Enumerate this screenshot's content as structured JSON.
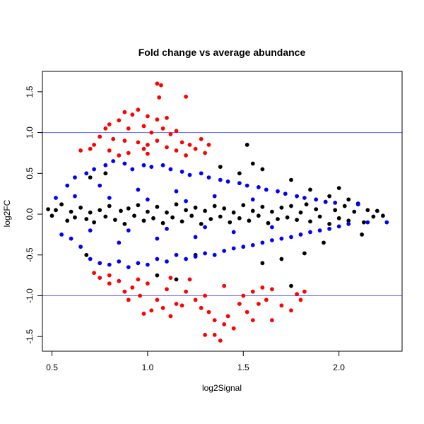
{
  "chart_data": {
    "type": "scatter",
    "title": "Fold change vs average abundance",
    "xlabel": "log2Signal",
    "ylabel": "log2FC",
    "xlim": [
      0.45,
      2.33
    ],
    "ylim": [
      -1.68,
      1.75
    ],
    "xticks": [
      0.5,
      1.0,
      1.5,
      2.0
    ],
    "xtick_labels": [
      "0.5",
      "1.0",
      "1.5",
      "2.0"
    ],
    "yticks": [
      -1.5,
      -1.0,
      -0.5,
      0.0,
      0.5,
      1.0,
      1.5
    ],
    "ytick_labels": [
      "-1.5",
      "-1.0",
      "-0.5",
      "0.0",
      "0.5",
      "1.0",
      "1.5"
    ],
    "reference_lines": [
      {
        "y": 1.0,
        "color": "#6666ff"
      },
      {
        "y": -1.0,
        "color": "#6666ff"
      }
    ],
    "grid": false,
    "series": [
      {
        "color": "#000000",
        "points": [
          [
            0.48,
            0.06
          ],
          [
            0.5,
            -0.02
          ],
          [
            0.52,
            0.05
          ],
          [
            0.55,
            0.12
          ],
          [
            0.58,
            -0.08
          ],
          [
            0.6,
            0.03
          ],
          [
            0.62,
            -0.04
          ],
          [
            0.65,
            0.08
          ],
          [
            0.68,
            -0.06
          ],
          [
            0.7,
            0.02
          ],
          [
            0.72,
            -0.1
          ],
          [
            0.75,
            0.05
          ],
          [
            0.78,
            -0.03
          ],
          [
            0.8,
            0.1
          ],
          [
            0.83,
            -0.07
          ],
          [
            0.86,
            0.04
          ],
          [
            0.88,
            -0.12
          ],
          [
            0.9,
            0.07
          ],
          [
            0.93,
            -0.02
          ],
          [
            0.95,
            0.11
          ],
          [
            0.98,
            -0.08
          ],
          [
            1.0,
            0.03
          ],
          [
            1.03,
            -0.05
          ],
          [
            1.05,
            0.09
          ],
          [
            1.08,
            -0.11
          ],
          [
            1.1,
            0.02
          ],
          [
            1.13,
            -0.04
          ],
          [
            1.15,
            0.12
          ],
          [
            1.18,
            -0.09
          ],
          [
            1.2,
            0.05
          ],
          [
            1.23,
            -0.02
          ],
          [
            1.25,
            0.08
          ],
          [
            1.28,
            -0.12
          ],
          [
            1.3,
            0.04
          ],
          [
            1.33,
            -0.06
          ],
          [
            1.35,
            0.1
          ],
          [
            1.38,
            -0.03
          ],
          [
            1.4,
            0.07
          ],
          [
            1.43,
            -0.1
          ],
          [
            1.45,
            0.02
          ],
          [
            1.48,
            -0.05
          ],
          [
            1.5,
            0.11
          ],
          [
            1.53,
            -0.08
          ],
          [
            1.55,
            0.04
          ],
          [
            1.58,
            -0.02
          ],
          [
            1.6,
            0.09
          ],
          [
            1.63,
            -0.11
          ],
          [
            1.65,
            0.03
          ],
          [
            1.68,
            -0.06
          ],
          [
            1.7,
            0.08
          ],
          [
            1.73,
            -0.04
          ],
          [
            1.75,
            0.1
          ],
          [
            1.78,
            -0.07
          ],
          [
            1.8,
            0.02
          ],
          [
            1.83,
            0.12
          ],
          [
            1.85,
            -0.09
          ],
          [
            1.88,
            0.06
          ],
          [
            1.9,
            -0.03
          ],
          [
            1.93,
            0.15
          ],
          [
            1.95,
            -0.12
          ],
          [
            1.98,
            0.05
          ],
          [
            2.0,
            -0.05
          ],
          [
            2.03,
            0.1
          ],
          [
            2.05,
            -0.08
          ],
          [
            2.08,
            0.03
          ],
          [
            2.1,
            0.13
          ],
          [
            2.13,
            -0.1
          ],
          [
            2.15,
            0.05
          ],
          [
            2.18,
            -0.03
          ],
          [
            2.2,
            0.04
          ],
          [
            2.23,
            -0.02
          ],
          [
            1.38,
            0.58
          ],
          [
            1.48,
            0.5
          ],
          [
            1.55,
            0.62
          ],
          [
            1.75,
            0.42
          ],
          [
            1.85,
            0.3
          ],
          [
            1.95,
            0.22
          ],
          [
            2.05,
            0.18
          ],
          [
            1.6,
            -0.6
          ],
          [
            1.75,
            -0.88
          ],
          [
            1.82,
            -0.48
          ],
          [
            1.7,
            -0.55
          ],
          [
            1.92,
            -0.35
          ],
          [
            1.15,
            -0.8
          ],
          [
            1.05,
            -0.75
          ],
          [
            1.25,
            -0.5
          ],
          [
            1.52,
            0.85
          ],
          [
            1.6,
            0.55
          ],
          [
            0.7,
            0.45
          ],
          [
            0.78,
            0.5
          ],
          [
            0.68,
            -0.5
          ],
          [
            2.0,
            0.32
          ],
          [
            2.12,
            -0.25
          ]
        ]
      },
      {
        "color": "#0000ff",
        "points": [
          [
            0.52,
            0.2
          ],
          [
            0.55,
            -0.25
          ],
          [
            0.58,
            0.35
          ],
          [
            0.6,
            -0.3
          ],
          [
            0.62,
            0.45
          ],
          [
            0.65,
            -0.4
          ],
          [
            0.68,
            0.5
          ],
          [
            0.7,
            -0.55
          ],
          [
            0.72,
            0.55
          ],
          [
            0.75,
            -0.6
          ],
          [
            0.78,
            0.6
          ],
          [
            0.8,
            -0.62
          ],
          [
            0.82,
            0.65
          ],
          [
            0.85,
            -0.58
          ],
          [
            0.88,
            0.62
          ],
          [
            0.9,
            -0.65
          ],
          [
            0.92,
            0.55
          ],
          [
            0.95,
            -0.6
          ],
          [
            0.98,
            0.6
          ],
          [
            1.0,
            -0.62
          ],
          [
            1.02,
            0.58
          ],
          [
            1.05,
            -0.55
          ],
          [
            1.08,
            0.6
          ],
          [
            1.1,
            -0.58
          ],
          [
            1.12,
            0.55
          ],
          [
            1.15,
            -0.5
          ],
          [
            1.18,
            0.52
          ],
          [
            1.2,
            -0.55
          ],
          [
            1.22,
            0.48
          ],
          [
            1.25,
            -0.52
          ],
          [
            1.28,
            0.5
          ],
          [
            1.3,
            -0.48
          ],
          [
            1.32,
            0.45
          ],
          [
            1.35,
            -0.5
          ],
          [
            1.38,
            0.42
          ],
          [
            1.4,
            -0.45
          ],
          [
            1.42,
            0.4
          ],
          [
            1.45,
            -0.42
          ],
          [
            1.48,
            0.38
          ],
          [
            1.5,
            -0.4
          ],
          [
            1.52,
            0.35
          ],
          [
            1.55,
            -0.38
          ],
          [
            1.58,
            0.33
          ],
          [
            1.6,
            -0.35
          ],
          [
            1.62,
            0.3
          ],
          [
            1.65,
            -0.32
          ],
          [
            1.68,
            0.28
          ],
          [
            1.7,
            -0.3
          ],
          [
            1.72,
            0.25
          ],
          [
            1.75,
            -0.28
          ],
          [
            1.78,
            0.22
          ],
          [
            1.8,
            -0.25
          ],
          [
            1.82,
            0.2
          ],
          [
            1.85,
            -0.22
          ],
          [
            1.88,
            0.18
          ],
          [
            1.9,
            -0.2
          ],
          [
            1.93,
            0.15
          ],
          [
            1.95,
            -0.18
          ],
          [
            1.98,
            0.14
          ],
          [
            2.0,
            -0.15
          ],
          [
            2.05,
            -0.12
          ],
          [
            2.1,
            0.12
          ],
          [
            2.15,
            -0.1
          ],
          [
            2.25,
            -0.1
          ],
          [
            0.75,
            0.35
          ],
          [
            0.85,
            -0.35
          ],
          [
            0.95,
            0.3
          ],
          [
            1.05,
            -0.3
          ],
          [
            1.15,
            0.28
          ],
          [
            1.25,
            -0.28
          ],
          [
            1.35,
            0.22
          ],
          [
            1.45,
            -0.22
          ],
          [
            1.55,
            0.18
          ],
          [
            1.65,
            -0.16
          ],
          [
            0.8,
            0.2
          ],
          [
            0.9,
            -0.2
          ],
          [
            1.0,
            0.18
          ],
          [
            1.1,
            -0.18
          ],
          [
            1.2,
            0.16
          ],
          [
            1.3,
            -0.16
          ],
          [
            0.7,
            -0.2
          ],
          [
            0.62,
            0.22
          ]
        ]
      },
      {
        "color": "#ff0000",
        "points": [
          [
            1.05,
            1.6
          ],
          [
            1.07,
            1.58
          ],
          [
            1.06,
            1.43
          ],
          [
            1.2,
            1.44
          ],
          [
            0.88,
            1.25
          ],
          [
            0.92,
            1.22
          ],
          [
            0.95,
            1.28
          ],
          [
            1.0,
            1.2
          ],
          [
            1.05,
            1.16
          ],
          [
            1.1,
            1.18
          ],
          [
            0.85,
            1.15
          ],
          [
            0.8,
            1.1
          ],
          [
            0.9,
            1.05
          ],
          [
            0.98,
            1.08
          ],
          [
            1.02,
            1.0
          ],
          [
            1.08,
            1.05
          ],
          [
            1.12,
            0.98
          ],
          [
            1.15,
            1.02
          ],
          [
            0.78,
            1.05
          ],
          [
            0.75,
            0.95
          ],
          [
            0.82,
            0.92
          ],
          [
            0.88,
            0.9
          ],
          [
            0.95,
            0.88
          ],
          [
            1.0,
            0.85
          ],
          [
            1.05,
            0.9
          ],
          [
            1.1,
            0.82
          ],
          [
            1.18,
            0.88
          ],
          [
            1.22,
            0.85
          ],
          [
            1.25,
            0.8
          ],
          [
            0.72,
            0.85
          ],
          [
            0.7,
            0.8
          ],
          [
            0.8,
            0.78
          ],
          [
            0.9,
            0.75
          ],
          [
            0.98,
            0.8
          ],
          [
            1.15,
            0.78
          ],
          [
            1.28,
            0.92
          ],
          [
            1.3,
            0.75
          ],
          [
            1.32,
            0.85
          ],
          [
            0.65,
            0.78
          ],
          [
            1.2,
            0.72
          ],
          [
            1.0,
            0.74
          ],
          [
            0.85,
            0.72
          ],
          [
            0.75,
            -0.78
          ],
          [
            0.8,
            -0.85
          ],
          [
            0.88,
            -0.95
          ],
          [
            0.92,
            -0.9
          ],
          [
            0.96,
            -1.0
          ],
          [
            1.0,
            -0.85
          ],
          [
            1.05,
            -1.05
          ],
          [
            1.1,
            -0.92
          ],
          [
            1.15,
            -1.1
          ],
          [
            1.2,
            -0.95
          ],
          [
            1.25,
            -1.05
          ],
          [
            1.28,
            -1.15
          ],
          [
            1.3,
            -1.0
          ],
          [
            1.32,
            -1.2
          ],
          [
            1.35,
            -1.3
          ],
          [
            1.38,
            -1.55
          ],
          [
            1.3,
            -1.48
          ],
          [
            1.35,
            -1.48
          ],
          [
            1.4,
            -1.35
          ],
          [
            1.42,
            -1.25
          ],
          [
            1.45,
            -1.4
          ],
          [
            1.48,
            -1.1
          ],
          [
            1.5,
            -1.0
          ],
          [
            1.52,
            -1.2
          ],
          [
            1.55,
            -0.95
          ],
          [
            1.58,
            -1.1
          ],
          [
            1.6,
            -0.9
          ],
          [
            1.62,
            -1.05
          ],
          [
            1.65,
            -0.92
          ],
          [
            1.7,
            -1.12
          ],
          [
            1.75,
            -1.18
          ],
          [
            1.78,
            -0.98
          ],
          [
            1.8,
            -1.05
          ],
          [
            1.82,
            -0.95
          ],
          [
            1.65,
            -1.3
          ],
          [
            1.55,
            -1.3
          ],
          [
            0.98,
            -1.22
          ],
          [
            1.02,
            -1.18
          ],
          [
            1.08,
            -1.15
          ],
          [
            1.12,
            -1.25
          ],
          [
            1.18,
            -1.12
          ],
          [
            0.85,
            -0.82
          ],
          [
            0.95,
            -0.8
          ],
          [
            1.12,
            -0.78
          ],
          [
            1.22,
            -0.8
          ],
          [
            1.4,
            -0.88
          ],
          [
            0.9,
            -1.05
          ],
          [
            0.8,
            -0.75
          ],
          [
            0.72,
            -0.72
          ]
        ]
      }
    ]
  }
}
